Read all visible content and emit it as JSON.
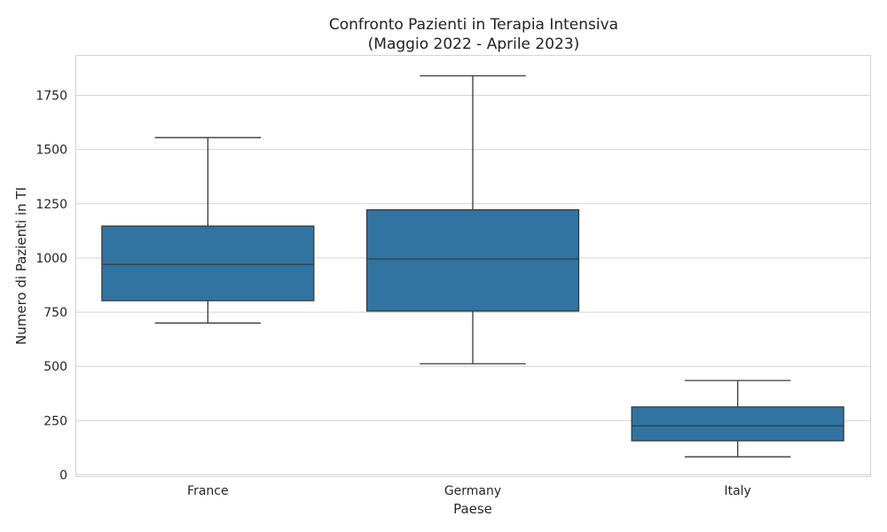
{
  "chart_data": {
    "type": "box",
    "title": [
      "Confronto Pazienti in Terapia Intensiva",
      "(Maggio 2022 - Aprile 2023)"
    ],
    "xlabel": "Paese",
    "ylabel": "Numero di Pazienti in TI",
    "ylim": [
      0,
      1930
    ],
    "yticks": [
      0,
      250,
      500,
      750,
      1000,
      1250,
      1500,
      1750
    ],
    "grid": true,
    "box_color": "#3274a1",
    "line_color": "#3a3a3a",
    "categories": [
      "France",
      "Germany",
      "Italy"
    ],
    "boxes": [
      {
        "category": "France",
        "whisker_low": 700,
        "q1": 803,
        "median": 970,
        "q3": 1147,
        "whisker_high": 1555
      },
      {
        "category": "Germany",
        "whisker_low": 512,
        "q1": 755,
        "median": 995,
        "q3": 1222,
        "whisker_high": 1840
      },
      {
        "category": "Italy",
        "whisker_low": 83,
        "q1": 157,
        "median": 226,
        "q3": 313,
        "whisker_high": 435
      }
    ]
  }
}
